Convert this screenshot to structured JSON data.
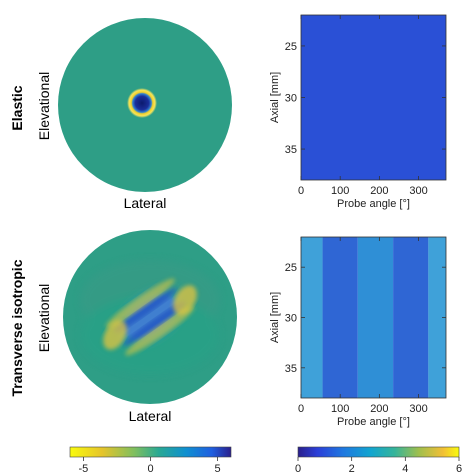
{
  "rows": [
    {
      "row_label": "Elastic",
      "vertical_label": "Elevational",
      "horizontal_label": "Lateral"
    },
    {
      "row_label": "Transverse isotropic",
      "vertical_label": "Elevational",
      "horizontal_label": "Lateral"
    }
  ],
  "colors": {
    "disk_teal": "#2e9e86",
    "elastic_map": "#2a50d6",
    "ti_base": "#2f8fd6",
    "ti_band": "#2f66d4",
    "ti_edge": "#3fa1d9"
  },
  "chart_data": [
    {
      "type": "heatmap",
      "name_key": "elastic_map",
      "xlabel": "Probe angle [°]",
      "ylabel": "Axial [mm]",
      "xlim": [
        0,
        370
      ],
      "ylim": [
        38,
        22
      ],
      "xticks": [
        "0",
        "100",
        "200",
        "300"
      ],
      "yticks": [
        "25",
        "30",
        "35"
      ],
      "pattern": "uniform"
    },
    {
      "type": "heatmap",
      "name_key": "ti_map",
      "xlabel": "Probe angle [°]",
      "ylabel": "Axial [mm]",
      "xlim": [
        0,
        370
      ],
      "ylim": [
        38,
        22
      ],
      "xticks": [
        "0",
        "100",
        "200",
        "300"
      ],
      "yticks": [
        "25",
        "30",
        "35"
      ],
      "pattern": "vertical-bands",
      "band_edges_deg": [
        0,
        55,
        145,
        235,
        325,
        370
      ]
    },
    {
      "type": "heatmap",
      "name_key": "colorbar_left",
      "colormap": "parula-reversed",
      "range": [
        -6,
        6
      ],
      "tick_labels": [
        "-5",
        "0",
        "5"
      ]
    },
    {
      "type": "heatmap",
      "name_key": "colorbar_right",
      "colormap": "parula",
      "range": [
        0,
        6
      ],
      "tick_labels": [
        "0",
        "2",
        "4",
        "6"
      ]
    }
  ]
}
